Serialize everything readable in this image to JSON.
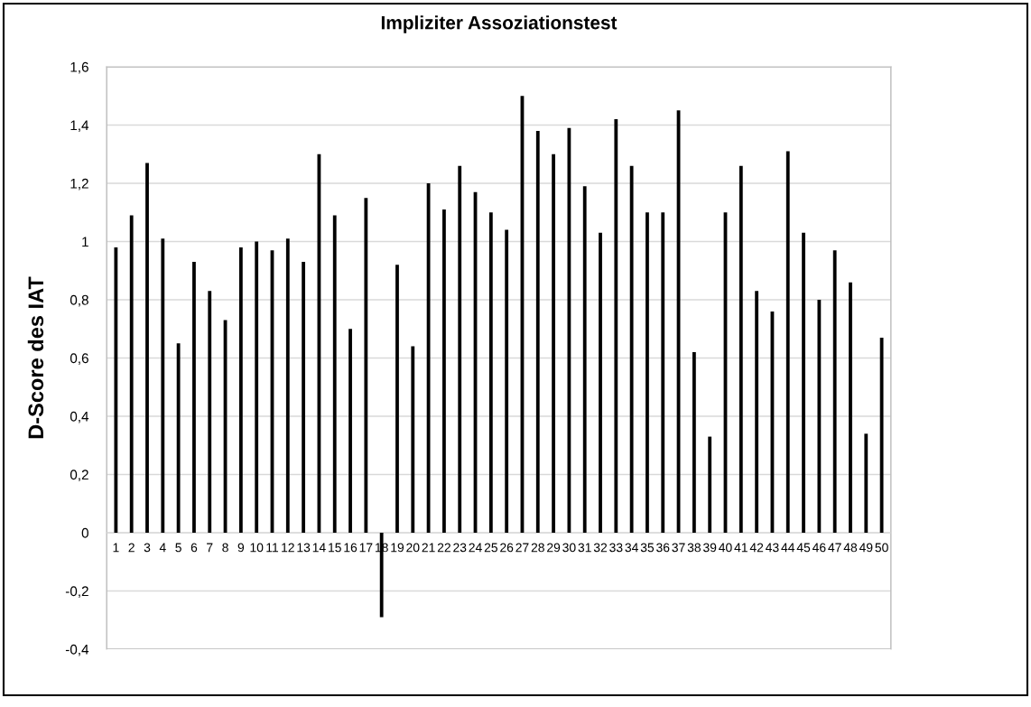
{
  "chart_data": {
    "type": "bar",
    "title": "Impliziter Assoziationstest",
    "ylabel": "D-Score des IAT",
    "categories": [
      "1",
      "2",
      "3",
      "4",
      "5",
      "6",
      "7",
      "8",
      "9",
      "10",
      "11",
      "12",
      "13",
      "14",
      "15",
      "16",
      "17",
      "18",
      "19",
      "20",
      "21",
      "22",
      "23",
      "24",
      "25",
      "26",
      "27",
      "28",
      "29",
      "30",
      "31",
      "32",
      "33",
      "34",
      "35",
      "36",
      "37",
      "38",
      "39",
      "40",
      "41",
      "42",
      "43",
      "44",
      "45",
      "46",
      "47",
      "48",
      "49",
      "50"
    ],
    "values": [
      0.98,
      1.09,
      1.27,
      1.01,
      0.65,
      0.93,
      0.83,
      0.73,
      0.98,
      1.0,
      0.97,
      1.01,
      0.93,
      1.3,
      1.09,
      0.7,
      1.15,
      -0.29,
      0.92,
      0.64,
      1.2,
      1.11,
      1.26,
      1.17,
      1.1,
      1.04,
      1.5,
      1.38,
      1.3,
      1.39,
      1.19,
      1.03,
      1.42,
      1.26,
      1.1,
      1.1,
      1.45,
      0.62,
      0.33,
      1.1,
      1.26,
      0.83,
      0.76,
      1.31,
      1.03,
      0.8,
      0.97,
      0.86,
      0.34,
      0.67
    ],
    "color": "#000000",
    "ylim": [
      -0.4,
      1.6
    ],
    "yticks": [
      {
        "value": -0.4,
        "label": "-0,4"
      },
      {
        "value": -0.2,
        "label": "-0,2"
      },
      0,
      {
        "value": 0.2,
        "label": "0,2"
      },
      {
        "value": 0.4,
        "label": "0,4"
      },
      {
        "value": 0.6,
        "label": "0,6"
      },
      {
        "value": 0.8,
        "label": "0,8"
      },
      1,
      {
        "value": 1.2,
        "label": "1,2"
      },
      {
        "value": 1.4,
        "label": "1,4"
      },
      {
        "value": 1.6,
        "label": "1,6"
      }
    ],
    "grid": "y",
    "legend": false
  }
}
